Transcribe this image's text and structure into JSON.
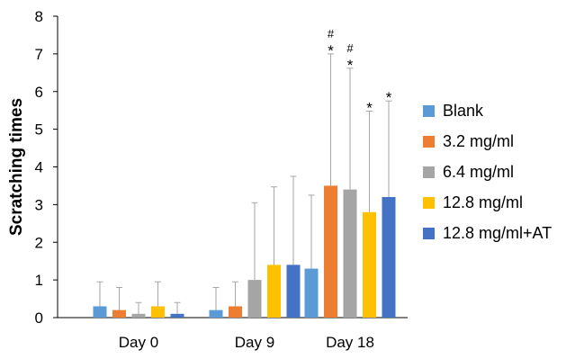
{
  "chart_data": {
    "type": "bar",
    "title": "",
    "xlabel": "",
    "ylabel": "Scratching times",
    "ylim": [
      0,
      8
    ],
    "yticks": [
      0,
      1,
      2,
      3,
      4,
      5,
      6,
      7,
      8
    ],
    "grid": false,
    "legend_position": "right",
    "categories": [
      "Day 0",
      "Day 9",
      "Day 18"
    ],
    "series": [
      {
        "name": "Blank",
        "color": "#5B9BD5",
        "values": [
          0.3,
          0.2,
          1.3
        ],
        "errors": [
          0.65,
          0.6,
          1.95
        ]
      },
      {
        "name": "3.2 mg/ml",
        "color": "#ED7D31",
        "values": [
          0.2,
          0.3,
          3.5
        ],
        "errors": [
          0.6,
          0.65,
          3.5
        ]
      },
      {
        "name": "6.4 mg/ml",
        "color": "#A5A5A5",
        "values": [
          0.1,
          1.0,
          3.4
        ],
        "errors": [
          0.3,
          2.05,
          3.22
        ]
      },
      {
        "name": "12.8 mg/ml",
        "color": "#FFC000",
        "values": [
          0.3,
          1.4,
          2.8
        ],
        "errors": [
          0.65,
          2.07,
          2.68
        ]
      },
      {
        "name": "12.8 mg/ml+AT",
        "color": "#4472C4",
        "values": [
          0.1,
          1.4,
          3.2
        ],
        "errors": [
          0.3,
          2.35,
          2.55
        ]
      }
    ],
    "annotations": [
      {
        "category": "Day 18",
        "series": "3.2 mg/ml",
        "marks": [
          "#",
          "*"
        ]
      },
      {
        "category": "Day 18",
        "series": "6.4 mg/ml",
        "marks": [
          "#",
          "*"
        ]
      },
      {
        "category": "Day 18",
        "series": "12.8 mg/ml",
        "marks": [
          "*"
        ]
      },
      {
        "category": "Day 18",
        "series": "12.8 mg/ml+AT",
        "marks": [
          "*"
        ]
      }
    ]
  }
}
